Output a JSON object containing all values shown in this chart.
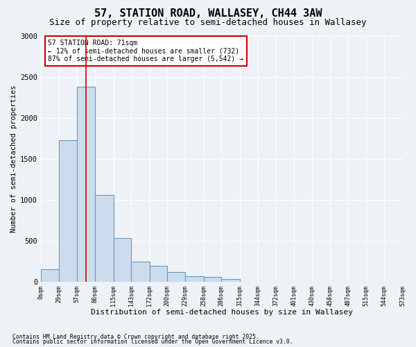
{
  "title": "57, STATION ROAD, WALLASEY, CH44 3AW",
  "subtitle": "Size of property relative to semi-detached houses in Wallasey",
  "xlabel": "Distribution of semi-detached houses by size in Wallasey",
  "ylabel": "Number of semi-detached properties",
  "bar_color": "#cddcec",
  "bar_edge_color": "#6699bb",
  "annotation_box_color": "#cc0000",
  "vline_color": "#cc0000",
  "vline_x": 71,
  "annotation_title": "57 STATION ROAD: 71sqm",
  "annotation_line1": "← 12% of semi-detached houses are smaller (732)",
  "annotation_line2": "87% of semi-detached houses are larger (5,542) →",
  "footnote1": "Contains HM Land Registry data © Crown copyright and database right 2025.",
  "footnote2": "Contains public sector information licensed under the Open Government Licence v3.0.",
  "bin_edges": [
    0,
    29,
    57,
    86,
    115,
    143,
    172,
    200,
    229,
    258,
    286,
    315,
    344,
    372,
    401,
    430,
    458,
    487,
    515,
    544,
    573
  ],
  "bin_labels": [
    "0sqm",
    "29sqm",
    "57sqm",
    "86sqm",
    "115sqm",
    "143sqm",
    "172sqm",
    "200sqm",
    "229sqm",
    "258sqm",
    "286sqm",
    "315sqm",
    "344sqm",
    "372sqm",
    "401sqm",
    "430sqm",
    "458sqm",
    "487sqm",
    "515sqm",
    "544sqm",
    "573sqm"
  ],
  "counts": [
    150,
    1730,
    2380,
    1060,
    530,
    245,
    195,
    120,
    70,
    55,
    30,
    0,
    0,
    0,
    0,
    0,
    0,
    0,
    0,
    0
  ],
  "ylim": [
    0,
    3000
  ],
  "yticks": [
    0,
    500,
    1000,
    1500,
    2000,
    2500,
    3000
  ],
  "background_color": "#eef2f6",
  "plot_background": "#eef2f6",
  "grid_color": "#ffffff",
  "title_fontsize": 11,
  "subtitle_fontsize": 9
}
